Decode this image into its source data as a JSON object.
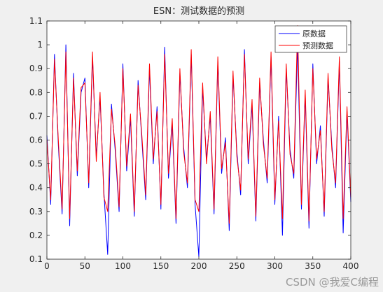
{
  "chart_data": {
    "type": "line",
    "title": "ESN：测试数据的预测",
    "xlabel": "",
    "ylabel": "",
    "xlim": [
      0,
      400
    ],
    "ylim": [
      0.1,
      1.1
    ],
    "xticks": [
      0,
      50,
      100,
      150,
      200,
      250,
      300,
      350,
      400
    ],
    "yticks": [
      0.1,
      0.2,
      0.3,
      0.4,
      0.5,
      0.6,
      0.7,
      0.8,
      0.9,
      1,
      1.1
    ],
    "grid": false,
    "legend_position": "top-right",
    "series": [
      {
        "name": "原数据",
        "color": "#0000ff",
        "x": [
          0,
          5,
          10,
          15,
          20,
          25,
          30,
          35,
          40,
          45,
          50,
          55,
          60,
          65,
          70,
          75,
          80,
          85,
          90,
          95,
          100,
          105,
          110,
          115,
          120,
          125,
          130,
          135,
          140,
          145,
          150,
          155,
          160,
          165,
          170,
          175,
          180,
          185,
          190,
          195,
          200,
          205,
          210,
          215,
          220,
          225,
          230,
          235,
          240,
          245,
          250,
          255,
          260,
          265,
          270,
          275,
          280,
          285,
          290,
          295,
          300,
          305,
          310,
          315,
          320,
          325,
          330,
          335,
          340,
          345,
          350,
          355,
          360,
          365,
          370,
          375,
          380,
          385,
          390,
          395,
          400
        ],
        "values": [
          0.62,
          0.33,
          0.96,
          0.58,
          0.29,
          1.0,
          0.24,
          0.88,
          0.45,
          0.8,
          0.86,
          0.4,
          0.95,
          0.53,
          0.78,
          0.38,
          0.12,
          0.75,
          0.55,
          0.3,
          0.92,
          0.47,
          0.69,
          0.28,
          0.85,
          0.6,
          0.35,
          0.9,
          0.5,
          0.74,
          0.31,
          0.99,
          0.44,
          0.67,
          0.25,
          0.88,
          0.57,
          0.4,
          0.96,
          0.33,
          0.11,
          0.82,
          0.52,
          0.7,
          0.29,
          0.93,
          0.46,
          0.61,
          0.22,
          0.87,
          0.55,
          0.37,
          0.98,
          0.5,
          0.75,
          0.26,
          0.84,
          0.6,
          0.42,
          0.95,
          0.33,
          0.7,
          0.2,
          0.9,
          0.56,
          0.44,
          1.0,
          0.31,
          0.79,
          0.23,
          0.92,
          0.5,
          0.66,
          0.28,
          0.86,
          0.58,
          0.4,
          0.93,
          0.21,
          0.72,
          0.34
        ]
      },
      {
        "name": "预测数据",
        "color": "#ff0000",
        "x": [
          0,
          5,
          10,
          15,
          20,
          25,
          30,
          35,
          40,
          45,
          50,
          55,
          60,
          65,
          70,
          75,
          80,
          85,
          90,
          95,
          100,
          105,
          110,
          115,
          120,
          125,
          130,
          135,
          140,
          145,
          150,
          155,
          160,
          165,
          170,
          175,
          180,
          185,
          190,
          195,
          200,
          205,
          210,
          215,
          220,
          225,
          230,
          235,
          240,
          245,
          250,
          255,
          260,
          265,
          270,
          275,
          280,
          285,
          290,
          295,
          300,
          305,
          310,
          315,
          320,
          325,
          330,
          335,
          340,
          345,
          350,
          355,
          360,
          365,
          370,
          375,
          380,
          385,
          390,
          395,
          400
        ],
        "values": [
          0.6,
          0.35,
          0.94,
          0.6,
          0.31,
          0.97,
          0.27,
          0.86,
          0.47,
          0.82,
          0.84,
          0.42,
          0.97,
          0.51,
          0.8,
          0.36,
          0.3,
          0.73,
          0.57,
          0.32,
          0.9,
          0.49,
          0.71,
          0.3,
          0.83,
          0.62,
          0.37,
          0.92,
          0.52,
          0.72,
          0.33,
          0.96,
          0.46,
          0.69,
          0.27,
          0.9,
          0.55,
          0.42,
          0.98,
          0.35,
          0.3,
          0.84,
          0.5,
          0.72,
          0.31,
          0.95,
          0.48,
          0.59,
          0.25,
          0.89,
          0.53,
          0.39,
          0.96,
          0.52,
          0.77,
          0.28,
          0.86,
          0.58,
          0.44,
          0.97,
          0.35,
          0.68,
          0.27,
          0.92,
          0.54,
          0.46,
          1.08,
          0.33,
          0.81,
          0.26,
          0.9,
          0.52,
          0.64,
          0.3,
          0.88,
          0.56,
          0.42,
          0.95,
          0.27,
          0.74,
          0.36
        ]
      }
    ]
  },
  "watermark": "CSDN @我爱C编程"
}
